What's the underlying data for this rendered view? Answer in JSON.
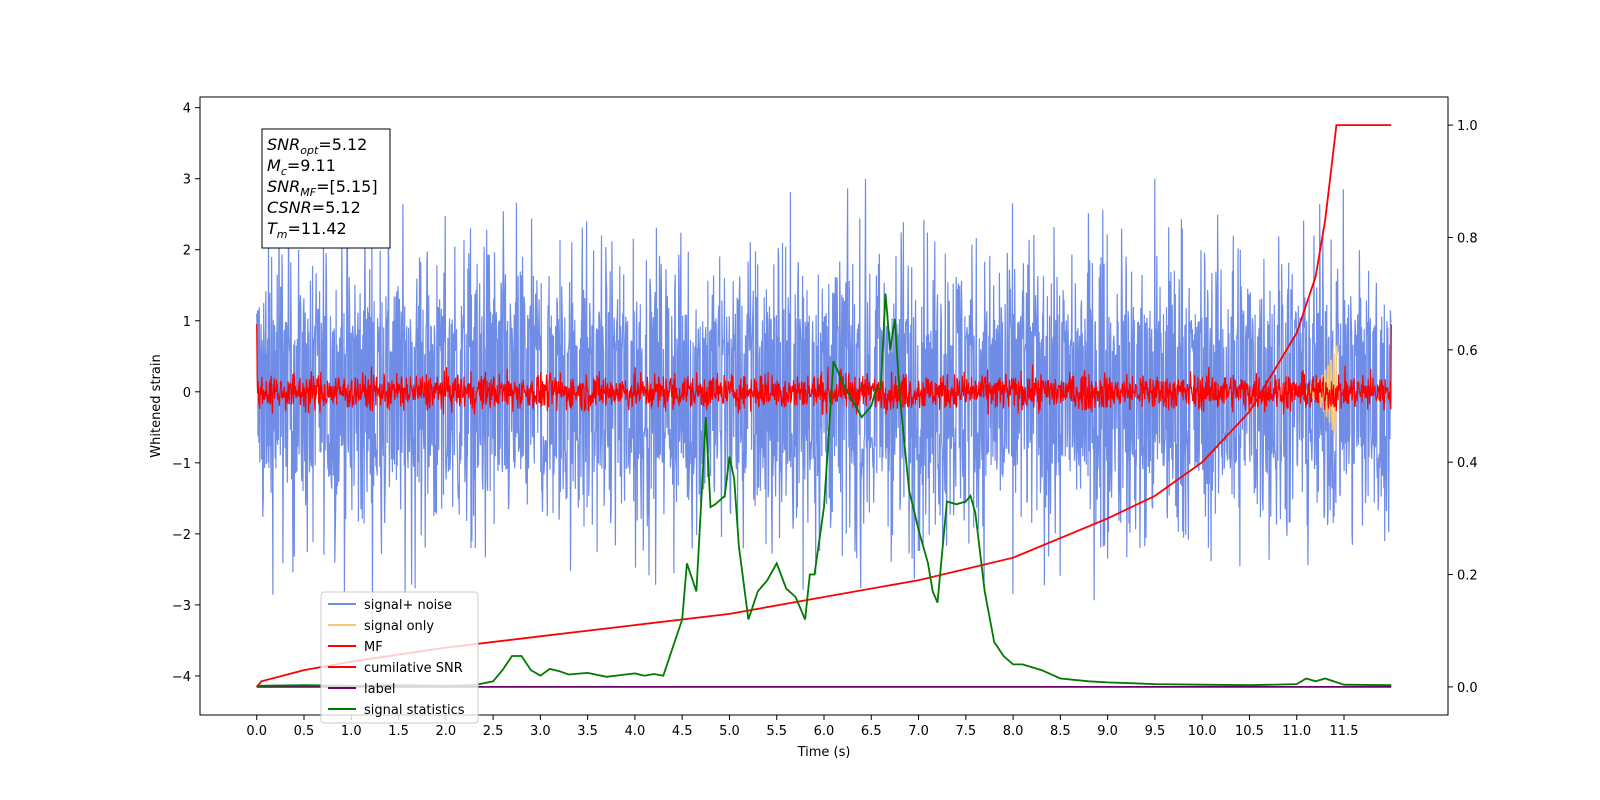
{
  "chart_data": {
    "type": "line",
    "xlabel": "Time (s)",
    "ylabel": "Whitened strain",
    "xlim": [
      -0.6,
      12.6
    ],
    "ylim": [
      -4.55,
      4.15
    ],
    "y2lim": [
      -0.05,
      1.05
    ],
    "x_ticks": [
      "0.0",
      "0.5",
      "1.0",
      "1.5",
      "2.0",
      "2.5",
      "3.0",
      "3.5",
      "4.0",
      "4.5",
      "5.0",
      "5.5",
      "6.0",
      "6.5",
      "7.0",
      "7.5",
      "8.0",
      "8.5",
      "9.0",
      "9.5",
      "10.0",
      "10.5",
      "11.0",
      "11.5"
    ],
    "y_ticks": [
      "4",
      "3",
      "2",
      "1",
      "0",
      "−1",
      "−2",
      "−3",
      "−4"
    ],
    "y2_ticks": [
      "0.0",
      "0.2",
      "0.4",
      "0.6",
      "0.8",
      "1.0"
    ],
    "legend_position": "lower-left",
    "annotation": {
      "lines": [
        {
          "label": "SNR",
          "sub": "opt",
          "value": "=5.12"
        },
        {
          "label": "M",
          "sub": "c",
          "value": "=9.11"
        },
        {
          "label": "SNR",
          "sub": "MF",
          "value": "=[5.15]"
        },
        {
          "label": "CSNR",
          "sub": "",
          "value": "=5.12"
        },
        {
          "label": "T",
          "sub": "m",
          "value": "=11.42"
        }
      ]
    },
    "series": [
      {
        "name": "signal+ noise",
        "color": "#6f8ce6",
        "axis": "left",
        "style": "noise",
        "x_range": [
          0,
          12
        ],
        "mean": 0.0,
        "amplitude": 2.0
      },
      {
        "name": "signal only",
        "color": "#f5c97a",
        "axis": "left",
        "style": "chirp",
        "peak_x": 11.42,
        "peak_y": 0.7
      },
      {
        "name": "MF",
        "color": "#ff0000",
        "axis": "left",
        "style": "noise",
        "x_range": [
          0,
          12
        ],
        "mean": 0.0,
        "amplitude": 0.45
      },
      {
        "name": "cumilative SNR",
        "color": "#ff0000",
        "axis": "right",
        "x": [
          0,
          0.05,
          0.5,
          1,
          2,
          3,
          4,
          5,
          6,
          7,
          8,
          9,
          9.5,
          10,
          10.5,
          11,
          11.2,
          11.3,
          11.35,
          11.42,
          12
        ],
        "y": [
          0.0,
          0.01,
          0.03,
          0.045,
          0.07,
          0.09,
          0.11,
          0.13,
          0.16,
          0.19,
          0.23,
          0.3,
          0.34,
          0.4,
          0.49,
          0.63,
          0.73,
          0.83,
          0.9,
          1.0,
          1.0
        ]
      },
      {
        "name": "label",
        "color": "#6a006a",
        "axis": "right",
        "x": [
          0,
          12
        ],
        "y": [
          0,
          0
        ]
      },
      {
        "name": "signal statistics",
        "color": "#007a00",
        "axis": "right",
        "x": [
          0,
          0.5,
          1,
          1.5,
          2,
          2.3,
          2.5,
          2.6,
          2.7,
          2.8,
          2.9,
          3,
          3.1,
          3.2,
          3.3,
          3.5,
          3.7,
          3.9,
          4.0,
          4.1,
          4.2,
          4.3,
          4.4,
          4.5,
          4.55,
          4.65,
          4.75,
          4.8,
          4.85,
          4.95,
          5.0,
          5.05,
          5.1,
          5.2,
          5.3,
          5.4,
          5.5,
          5.6,
          5.7,
          5.8,
          5.85,
          5.9,
          6.0,
          6.1,
          6.15,
          6.2,
          6.3,
          6.4,
          6.45,
          6.5,
          6.55,
          6.6,
          6.65,
          6.7,
          6.75,
          6.8,
          6.9,
          7.0,
          7.1,
          7.15,
          7.2,
          7.3,
          7.4,
          7.5,
          7.55,
          7.6,
          7.7,
          7.8,
          7.9,
          8.0,
          8.1,
          8.2,
          8.3,
          8.5,
          8.8,
          9.0,
          9.5,
          10,
          10.5,
          11.0,
          11.1,
          11.2,
          11.3,
          11.5,
          12.0
        ],
        "y": [
          0.002,
          0.003,
          0.002,
          0.003,
          0.002,
          0.003,
          0.01,
          0.03,
          0.055,
          0.055,
          0.03,
          0.02,
          0.032,
          0.028,
          0.022,
          0.025,
          0.018,
          0.022,
          0.024,
          0.02,
          0.023,
          0.02,
          0.07,
          0.12,
          0.22,
          0.17,
          0.48,
          0.32,
          0.325,
          0.34,
          0.41,
          0.37,
          0.25,
          0.12,
          0.17,
          0.19,
          0.22,
          0.175,
          0.16,
          0.12,
          0.2,
          0.2,
          0.32,
          0.58,
          0.56,
          0.54,
          0.51,
          0.48,
          0.49,
          0.5,
          0.53,
          0.53,
          0.7,
          0.6,
          0.655,
          0.52,
          0.35,
          0.28,
          0.22,
          0.17,
          0.15,
          0.33,
          0.325,
          0.33,
          0.34,
          0.31,
          0.17,
          0.08,
          0.055,
          0.04,
          0.04,
          0.035,
          0.03,
          0.015,
          0.01,
          0.008,
          0.005,
          0.004,
          0.003,
          0.005,
          0.015,
          0.01,
          0.015,
          0.004,
          0.003
        ]
      }
    ]
  }
}
